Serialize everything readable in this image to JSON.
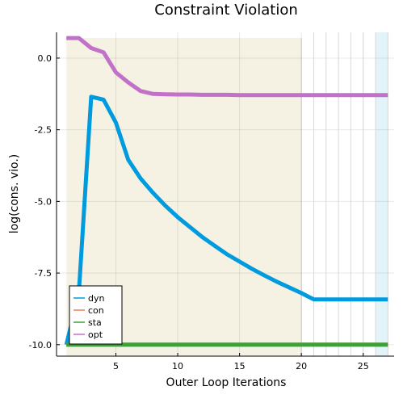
{
  "chart_data": {
    "type": "line",
    "title": "Constraint Violation",
    "xlabel": "Outer Loop Iterations",
    "ylabel": "log(cons. vio.)",
    "xlim": [
      0.2,
      27.5
    ],
    "ylim": [
      -10.4,
      0.9
    ],
    "x_ticks": [
      5,
      10,
      15,
      20,
      25
    ],
    "y_ticks": [
      0.0,
      -2.5,
      -5.0,
      -7.5,
      -10.0
    ],
    "x_tick_labels": [
      "5",
      "10",
      "15",
      "20",
      "25"
    ],
    "y_tick_labels": [
      "0.0",
      "-2.5",
      "-5.0",
      "-7.5",
      "-10.0"
    ],
    "grid": true,
    "legend_position": "bottom-left",
    "shaded_regions": [
      {
        "x0": 1,
        "x1": 20,
        "y0": -10.4,
        "y1": 0.7,
        "color": "#f5f2e4"
      },
      {
        "x0": 26,
        "x1": 27,
        "y0": -10.4,
        "y1": 0.9,
        "color": "#e3f3fa"
      }
    ],
    "vertical_lines": [
      21,
      22,
      23,
      24,
      25,
      26
    ],
    "series": [
      {
        "name": "dyn",
        "color": "#009ade",
        "x": [
          1,
          2,
          3,
          4,
          5,
          6,
          7,
          8,
          9,
          10,
          11,
          12,
          13,
          14,
          15,
          16,
          17,
          18,
          19,
          20,
          21,
          22,
          23,
          24,
          25,
          26,
          27
        ],
        "values": [
          -10.0,
          -8.2,
          -1.35,
          -1.45,
          -2.25,
          -3.55,
          -4.2,
          -4.7,
          -5.15,
          -5.55,
          -5.9,
          -6.25,
          -6.55,
          -6.85,
          -7.1,
          -7.35,
          -7.58,
          -7.8,
          -8.0,
          -8.2,
          -8.42,
          -8.42,
          -8.42,
          -8.42,
          -8.42,
          -8.42,
          -8.42
        ]
      },
      {
        "name": "con",
        "color": "#e8805b",
        "x": [
          1,
          27
        ],
        "values": [
          -10.0,
          -10.0
        ]
      },
      {
        "name": "sta",
        "color": "#3ca13c",
        "x": [
          1,
          27
        ],
        "values": [
          -10.0,
          -10.0
        ]
      },
      {
        "name": "opt",
        "color": "#c271c9",
        "x": [
          1,
          2,
          3,
          4,
          5,
          6,
          7,
          8,
          9,
          10,
          11,
          12,
          13,
          14,
          15,
          16,
          17,
          18,
          19,
          20,
          21,
          22,
          23,
          24,
          25,
          26,
          27
        ],
        "values": [
          0.7,
          0.7,
          0.35,
          0.2,
          -0.5,
          -0.85,
          -1.15,
          -1.25,
          -1.26,
          -1.27,
          -1.27,
          -1.28,
          -1.28,
          -1.28,
          -1.29,
          -1.29,
          -1.29,
          -1.29,
          -1.29,
          -1.29,
          -1.29,
          -1.29,
          -1.29,
          -1.29,
          -1.29,
          -1.29,
          -1.29
        ]
      }
    ]
  }
}
